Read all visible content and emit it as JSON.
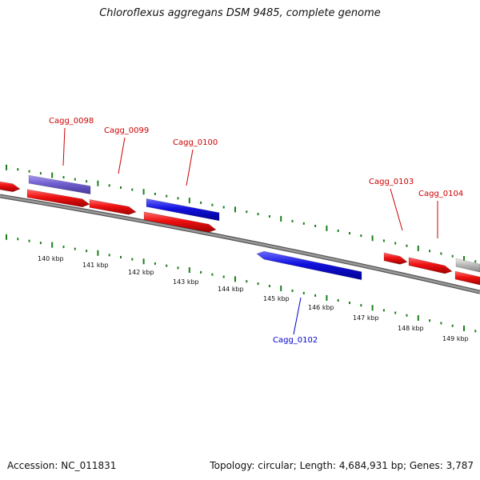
{
  "title": "Chloroflexus aggregans DSM 9485, complete genome",
  "footer": {
    "accession_label": "Accession:",
    "accession": "NC_011831",
    "topology_label": "Topology:",
    "topology": "circular",
    "length_label": "Length:",
    "length": "4,684,931 bp",
    "genes_label": "Genes:",
    "genes": "3,787"
  },
  "colors": {
    "backbone": "#777777",
    "forward_gene": "#ee1111",
    "reverse_gene": "#1111dd",
    "selected_gene": "#6f5fcf",
    "other_gene": "#bbbbbb",
    "ticks": "#1a7f1a",
    "forward_label": "#cc0000",
    "reverse_label": "#0000cc"
  },
  "scale_labels": [
    "140 kbp",
    "141 kbp",
    "142 kbp",
    "143 kbp",
    "144 kbp",
    "145 kbp",
    "146 kbp",
    "147 kbp",
    "148 kbp",
    "149 kbp"
  ],
  "gene_labels": [
    {
      "name": "Cagg_0098",
      "strand": "forward"
    },
    {
      "name": "Cagg_0099",
      "strand": "forward"
    },
    {
      "name": "Cagg_0100",
      "strand": "forward"
    },
    {
      "name": "Cagg_0102",
      "strand": "reverse"
    },
    {
      "name": "Cagg_0103",
      "strand": "forward"
    },
    {
      "name": "Cagg_0104",
      "strand": "forward"
    }
  ]
}
